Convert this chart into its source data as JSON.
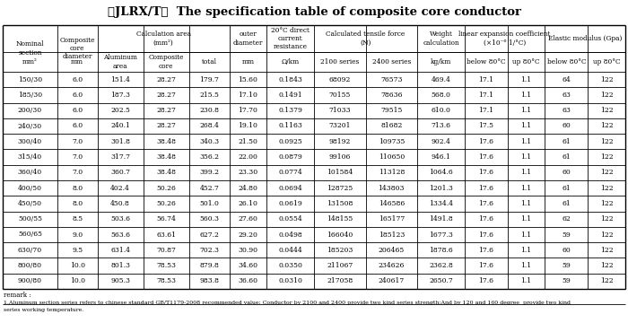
{
  "title": "（JLRX/T）  The specification table of composite core conductor",
  "rows": [
    [
      "150/30",
      "6.0",
      "151.4",
      "28.27",
      "179.7",
      "15.60",
      "0.1843",
      "68092",
      "76573",
      "469.4",
      "17.1",
      "1.1",
      "64",
      "122"
    ],
    [
      "185/30",
      "6.0",
      "187.3",
      "28.27",
      "215.5",
      "17.10",
      "0.1491",
      "70155",
      "78636",
      "568.0",
      "17.1",
      "1.1",
      "63",
      "122"
    ],
    [
      "200/30",
      "6.0",
      "202.5",
      "28.27",
      "230.8",
      "17.70",
      "0.1379",
      "71033",
      "79515",
      "610.0",
      "17.1",
      "1.1",
      "63",
      "122"
    ],
    [
      "240/30",
      "6.0",
      "240.1",
      "28.27",
      "268.4",
      "19.10",
      "0.1163",
      "73201",
      "81682",
      "713.6",
      "17.5",
      "1.1",
      "60",
      "122"
    ],
    [
      "300/40",
      "7.0",
      "301.8",
      "38.48",
      "340.3",
      "21.50",
      "0.0925",
      "98192",
      "109735",
      "902.4",
      "17.6",
      "1.1",
      "61",
      "122"
    ],
    [
      "315/40",
      "7.0",
      "317.7",
      "38.48",
      "356.2",
      "22.00",
      "0.0879",
      "99106",
      "110650",
      "946.1",
      "17.6",
      "1.1",
      "61",
      "122"
    ],
    [
      "360/40",
      "7.0",
      "360.7",
      "38.48",
      "399.2",
      "23.30",
      "0.0774",
      "101584",
      "113128",
      "1064.6",
      "17.6",
      "1.1",
      "60",
      "122"
    ],
    [
      "400/50",
      "8.0",
      "402.4",
      "50.26",
      "452.7",
      "24.80",
      "0.0694",
      "128725",
      "143803",
      "1201.3",
      "17.6",
      "1.1",
      "61",
      "122"
    ],
    [
      "450/50",
      "8.0",
      "450.8",
      "50.26",
      "501.0",
      "26.10",
      "0.0619",
      "131508",
      "146586",
      "1334.4",
      "17.6",
      "1.1",
      "61",
      "122"
    ],
    [
      "500/55",
      "8.5",
      "503.6",
      "56.74",
      "560.3",
      "27.60",
      "0.0554",
      "148155",
      "165177",
      "1491.8",
      "17.6",
      "1.1",
      "62",
      "122"
    ],
    [
      "560/65",
      "9.0",
      "563.6",
      "63.61",
      "627.2",
      "29.20",
      "0.0498",
      "166040",
      "185123",
      "1677.3",
      "17.6",
      "1.1",
      "59",
      "122"
    ],
    [
      "630/70",
      "9.5",
      "631.4",
      "70.87",
      "702.3",
      "30.90",
      "0.0444",
      "185203",
      "206465",
      "1878.6",
      "17.6",
      "1.1",
      "60",
      "122"
    ],
    [
      "800/80",
      "10.0",
      "801.3",
      "78.53",
      "879.8",
      "34.60",
      "0.0350",
      "211067",
      "234626",
      "2362.8",
      "17.6",
      "1.1",
      "59",
      "122"
    ],
    [
      "900/80",
      "10.0",
      "905.3",
      "78.53",
      "983.8",
      "36.60",
      "0.0310",
      "217058",
      "240617",
      "2650.7",
      "17.6",
      "1.1",
      "59",
      "122"
    ]
  ],
  "remark_line1": "remark :",
  "remark_line2": "1.Aluminum section series refers to chinese standard GB/T1179-2008 recommended value; Conductor by 2100 and 2400 provide two kind series strength;And by 120 and 160 degree  provide two kind",
  "remark_line3": "series working temperature.",
  "col_widths_rel": [
    3.8,
    2.8,
    3.2,
    3.2,
    2.8,
    2.6,
    3.3,
    3.6,
    3.6,
    3.3,
    3.0,
    2.6,
    3.0,
    2.6
  ],
  "fig_width": 7.0,
  "fig_height": 3.6,
  "dpi": 100
}
